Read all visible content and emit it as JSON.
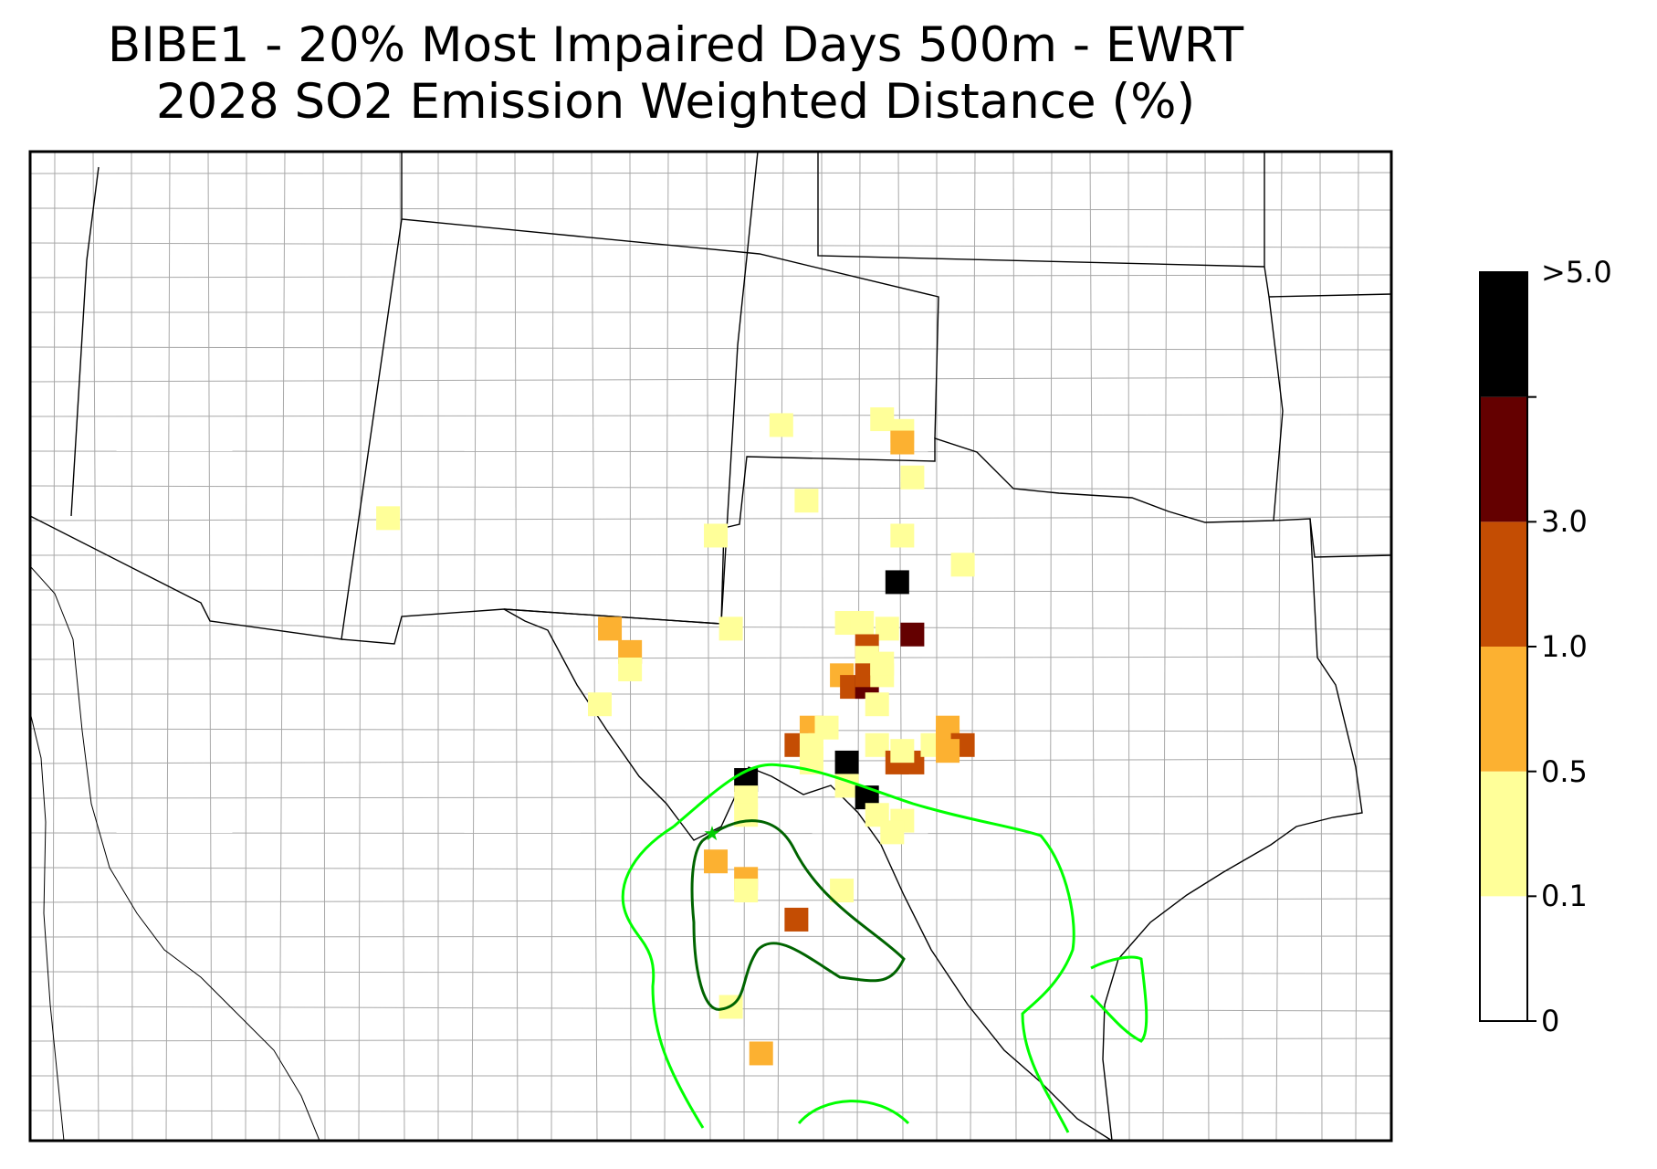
{
  "title": {
    "line1": "BIBE1 - 20% Most Impaired Days 500m - EWRT",
    "line2": "2028 SO2 Emission Weighted Distance (%)"
  },
  "legend": {
    "bins": [
      {
        "label": "0",
        "color": "#ffffff"
      },
      {
        "label": "0.1",
        "color": "#ffff99"
      },
      {
        "label": "0.5",
        "color": "#fcb131"
      },
      {
        "label": "1.0",
        "color": "#c44d03"
      },
      {
        "label": "3.0",
        "color": "#640000"
      },
      {
        "label": ">5.0",
        "color": "#000000"
      }
    ]
  },
  "receptor": {
    "name": "BIBE1",
    "symbol": "star-icon",
    "color": "#00cc00"
  },
  "contours": [
    {
      "name": "inner",
      "color": "#006400"
    },
    {
      "name": "outer",
      "color": "#00ff00"
    }
  ],
  "cells": [
    {
      "lon": -100.6,
      "lat": 36.8,
      "bin": 1
    },
    {
      "lon": -98.6,
      "lat": 36.9,
      "bin": 1
    },
    {
      "lon": -98.2,
      "lat": 36.7,
      "bin": 1
    },
    {
      "lon": -98.2,
      "lat": 36.5,
      "bin": 2
    },
    {
      "lon": -98.0,
      "lat": 35.9,
      "bin": 1
    },
    {
      "lon": -100.1,
      "lat": 35.5,
      "bin": 1
    },
    {
      "lon": -101.9,
      "lat": 34.9,
      "bin": 1
    },
    {
      "lon": -98.2,
      "lat": 34.9,
      "bin": 1
    },
    {
      "lon": -97.0,
      "lat": 34.4,
      "bin": 1
    },
    {
      "lon": -108.4,
      "lat": 35.2,
      "bin": 1
    },
    {
      "lon": -104.0,
      "lat": 33.3,
      "bin": 2
    },
    {
      "lon": -101.6,
      "lat": 33.3,
      "bin": 1
    },
    {
      "lon": -103.6,
      "lat": 32.9,
      "bin": 2
    },
    {
      "lon": -103.6,
      "lat": 32.6,
      "bin": 1
    },
    {
      "lon": -104.2,
      "lat": 32.0,
      "bin": 1
    },
    {
      "lon": -98.3,
      "lat": 34.1,
      "bin": 5
    },
    {
      "lon": -98.0,
      "lat": 33.2,
      "bin": 4
    },
    {
      "lon": -99.3,
      "lat": 33.4,
      "bin": 1
    },
    {
      "lon": -99.0,
      "lat": 33.4,
      "bin": 1
    },
    {
      "lon": -98.5,
      "lat": 33.3,
      "bin": 1
    },
    {
      "lon": -98.9,
      "lat": 33.0,
      "bin": 3
    },
    {
      "lon": -98.9,
      "lat": 32.8,
      "bin": 1
    },
    {
      "lon": -99.4,
      "lat": 32.5,
      "bin": 2
    },
    {
      "lon": -99.2,
      "lat": 32.3,
      "bin": 3
    },
    {
      "lon": -98.9,
      "lat": 32.3,
      "bin": 4
    },
    {
      "lon": -98.9,
      "lat": 32.5,
      "bin": 3
    },
    {
      "lon": -98.6,
      "lat": 32.5,
      "bin": 1
    },
    {
      "lon": -98.6,
      "lat": 32.7,
      "bin": 1
    },
    {
      "lon": -98.7,
      "lat": 32.0,
      "bin": 1
    },
    {
      "lon": -100.0,
      "lat": 31.6,
      "bin": 2
    },
    {
      "lon": -99.7,
      "lat": 31.6,
      "bin": 1
    },
    {
      "lon": -100.3,
      "lat": 31.3,
      "bin": 3
    },
    {
      "lon": -100.0,
      "lat": 31.3,
      "bin": 1
    },
    {
      "lon": -100.0,
      "lat": 31.0,
      "bin": 1
    },
    {
      "lon": -99.3,
      "lat": 31.0,
      "bin": 5
    },
    {
      "lon": -98.7,
      "lat": 31.3,
      "bin": 1
    },
    {
      "lon": -98.3,
      "lat": 31.0,
      "bin": 3
    },
    {
      "lon": -98.0,
      "lat": 31.0,
      "bin": 3
    },
    {
      "lon": -98.2,
      "lat": 31.2,
      "bin": 1
    },
    {
      "lon": -97.6,
      "lat": 31.3,
      "bin": 1
    },
    {
      "lon": -97.3,
      "lat": 31.6,
      "bin": 2
    },
    {
      "lon": -97.3,
      "lat": 31.4,
      "bin": 2
    },
    {
      "lon": -97.0,
      "lat": 31.3,
      "bin": 3
    },
    {
      "lon": -97.3,
      "lat": 31.2,
      "bin": 2
    },
    {
      "lon": -101.3,
      "lat": 30.7,
      "bin": 5
    },
    {
      "lon": -101.3,
      "lat": 30.4,
      "bin": 1
    },
    {
      "lon": -101.3,
      "lat": 30.1,
      "bin": 1
    },
    {
      "lon": -99.3,
      "lat": 30.6,
      "bin": 1
    },
    {
      "lon": -98.9,
      "lat": 30.4,
      "bin": 5
    },
    {
      "lon": -98.7,
      "lat": 30.1,
      "bin": 1
    },
    {
      "lon": -98.2,
      "lat": 30.0,
      "bin": 1
    },
    {
      "lon": -98.4,
      "lat": 29.8,
      "bin": 1
    },
    {
      "lon": -101.9,
      "lat": 29.3,
      "bin": 2
    },
    {
      "lon": -101.3,
      "lat": 29.0,
      "bin": 2
    },
    {
      "lon": -101.3,
      "lat": 28.8,
      "bin": 1
    },
    {
      "lon": -99.4,
      "lat": 28.8,
      "bin": 1
    },
    {
      "lon": -100.3,
      "lat": 28.3,
      "bin": 3
    },
    {
      "lon": -101.6,
      "lat": 26.8,
      "bin": 1
    },
    {
      "lon": -101.0,
      "lat": 26.0,
      "bin": 2
    }
  ]
}
